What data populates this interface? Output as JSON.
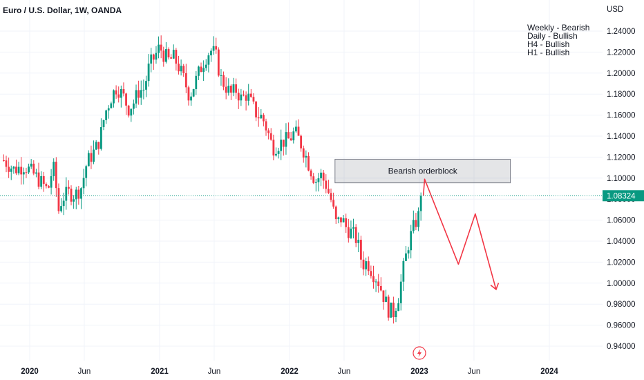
{
  "chart_data": {
    "type": "candlestick",
    "title": "Euro / U.S. Dollar, 1W, OANDA",
    "currency_label": "USD",
    "ylim": [
      0.928,
      1.255
    ],
    "y_ticks": [
      "1.24000",
      "1.22000",
      "1.20000",
      "1.18000",
      "1.16000",
      "1.14000",
      "1.12000",
      "1.10000",
      "1.08000",
      "1.06000",
      "1.04000",
      "1.02000",
      "1.00000",
      "0.98000",
      "0.96000",
      "0.94000"
    ],
    "x_ticks": [
      {
        "label": "2020",
        "t": 2020.0,
        "bold": true
      },
      {
        "label": "Jun",
        "t": 2020.42,
        "bold": false
      },
      {
        "label": "2021",
        "t": 2021.0,
        "bold": true
      },
      {
        "label": "Jun",
        "t": 2021.42,
        "bold": false
      },
      {
        "label": "2022",
        "t": 2022.0,
        "bold": true
      },
      {
        "label": "Jun",
        "t": 2022.42,
        "bold": false
      },
      {
        "label": "2023",
        "t": 2023.0,
        "bold": true
      },
      {
        "label": "Jun",
        "t": 2023.42,
        "bold": false
      },
      {
        "label": "2024",
        "t": 2024.0,
        "bold": true
      }
    ],
    "current_price": 1.08324,
    "current_price_label": "1.08324",
    "timeframe_notes": [
      "Weekly - Bearish",
      "Daily - Bullish",
      "H4 - Bullish",
      "H1 - Bullish"
    ],
    "orderblock": {
      "label": "Bearish orderblock",
      "t_start": 2022.35,
      "t_end": 2023.7,
      "price_low": 1.0955,
      "price_high": 1.118
    },
    "projection": [
      {
        "t": 2023.04,
        "price": 1.099
      },
      {
        "t": 2023.3,
        "price": 1.018
      },
      {
        "t": 2023.43,
        "price": 1.066
      },
      {
        "t": 2023.59,
        "price": 0.994
      }
    ],
    "price_path": [
      [
        2019.8,
        1.117
      ],
      [
        2019.88,
        1.108
      ],
      [
        2019.96,
        1.112
      ],
      [
        2020.02,
        1.105
      ],
      [
        2020.08,
        1.097
      ],
      [
        2020.14,
        1.088
      ],
      [
        2020.18,
        1.112
      ],
      [
        2020.2,
        1.096
      ],
      [
        2020.22,
        1.068
      ],
      [
        2020.25,
        1.081
      ],
      [
        2020.3,
        1.086
      ],
      [
        2020.35,
        1.084
      ],
      [
        2020.4,
        1.092
      ],
      [
        2020.44,
        1.115
      ],
      [
        2020.5,
        1.126
      ],
      [
        2020.54,
        1.137
      ],
      [
        2020.58,
        1.162
      ],
      [
        2020.63,
        1.178
      ],
      [
        2020.67,
        1.187
      ],
      [
        2020.72,
        1.178
      ],
      [
        2020.76,
        1.166
      ],
      [
        2020.8,
        1.172
      ],
      [
        2020.84,
        1.183
      ],
      [
        2020.88,
        1.185
      ],
      [
        2020.92,
        1.207
      ],
      [
        2020.96,
        1.215
      ],
      [
        2021.0,
        1.225
      ],
      [
        2021.03,
        1.218
      ],
      [
        2021.07,
        1.212
      ],
      [
        2021.11,
        1.215
      ],
      [
        2021.15,
        1.205
      ],
      [
        2021.19,
        1.193
      ],
      [
        2021.23,
        1.178
      ],
      [
        2021.27,
        1.19
      ],
      [
        2021.31,
        1.203
      ],
      [
        2021.35,
        1.214
      ],
      [
        2021.39,
        1.222
      ],
      [
        2021.43,
        1.218
      ],
      [
        2021.47,
        1.195
      ],
      [
        2021.51,
        1.187
      ],
      [
        2021.55,
        1.18
      ],
      [
        2021.59,
        1.184
      ],
      [
        2021.63,
        1.175
      ],
      [
        2021.67,
        1.18
      ],
      [
        2021.71,
        1.17
      ],
      [
        2021.75,
        1.16
      ],
      [
        2021.79,
        1.158
      ],
      [
        2021.83,
        1.145
      ],
      [
        2021.87,
        1.129
      ],
      [
        2021.91,
        1.132
      ],
      [
        2021.95,
        1.135
      ],
      [
        2022.0,
        1.137
      ],
      [
        2022.04,
        1.144
      ],
      [
        2022.08,
        1.135
      ],
      [
        2022.12,
        1.123
      ],
      [
        2022.16,
        1.109
      ],
      [
        2022.2,
        1.097
      ],
      [
        2022.24,
        1.103
      ],
      [
        2022.28,
        1.094
      ],
      [
        2022.32,
        1.079
      ],
      [
        2022.36,
        1.056
      ],
      [
        2022.4,
        1.062
      ],
      [
        2022.44,
        1.052
      ],
      [
        2022.48,
        1.048
      ],
      [
        2022.52,
        1.041
      ],
      [
        2022.56,
        1.018
      ],
      [
        2022.6,
        1.02
      ],
      [
        2022.64,
        1.01
      ],
      [
        2022.68,
        1.003
      ],
      [
        2022.72,
        0.989
      ],
      [
        2022.76,
        0.975
      ],
      [
        2022.8,
        0.972
      ],
      [
        2022.84,
        0.988
      ],
      [
        2022.88,
        1.016
      ],
      [
        2022.92,
        1.04
      ],
      [
        2022.96,
        1.055
      ],
      [
        2023.0,
        1.066
      ],
      [
        2023.03,
        1.083
      ]
    ]
  }
}
